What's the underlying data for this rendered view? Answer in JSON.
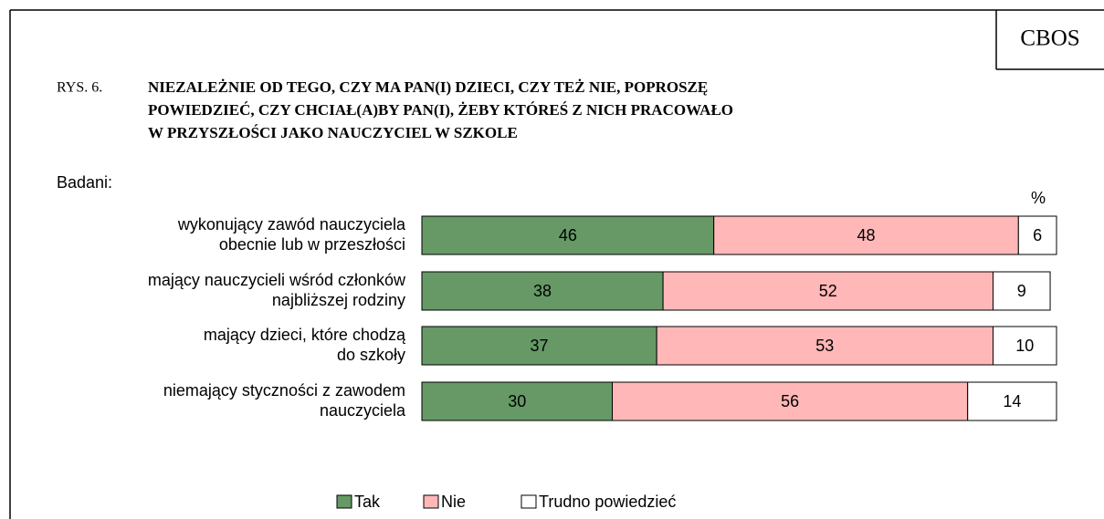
{
  "chart_data": {
    "type": "stacked-barh",
    "source": "CBOS",
    "figure_number": "RYS. 6.",
    "title": [
      "NIEZALEŻNIE OD TEGO, CZY MA PAN(I) DZIECI, CZY TEŻ NIE, POPROSZĘ",
      "POWIEDZIEĆ, CZY CHCIAŁ(A)BY PAN(I), ŻEBY KTÓREŚ Z NICH PRACOWAŁO",
      "W PRZYSZŁOŚCI JAKO NAUCZYCIEL W SZKOLE"
    ],
    "group_label": "Badani:",
    "unit_label": "%",
    "categories": [
      [
        "wykonujący zawód nauczyciela",
        "obecnie lub w przeszłości"
      ],
      [
        "mający nauczycieli wśród członków",
        "najbliższej rodziny"
      ],
      [
        "mający dzieci, które chodzą",
        "do szkoły"
      ],
      [
        "niemający styczności z zawodem",
        "nauczyciela"
      ]
    ],
    "series": [
      {
        "name": "Tak",
        "color": "#669966",
        "label_color": "#ffffff",
        "values": [
          46,
          38,
          37,
          30
        ]
      },
      {
        "name": "Nie",
        "color": "#ffb7b7",
        "label_color": "#000000",
        "values": [
          48,
          52,
          53,
          56
        ]
      },
      {
        "name": "Trudno powiedzieć",
        "color": "#ffffff",
        "label_color": "#000000",
        "values": [
          6,
          9,
          10,
          14
        ]
      }
    ],
    "xlim": [
      0,
      100
    ]
  }
}
